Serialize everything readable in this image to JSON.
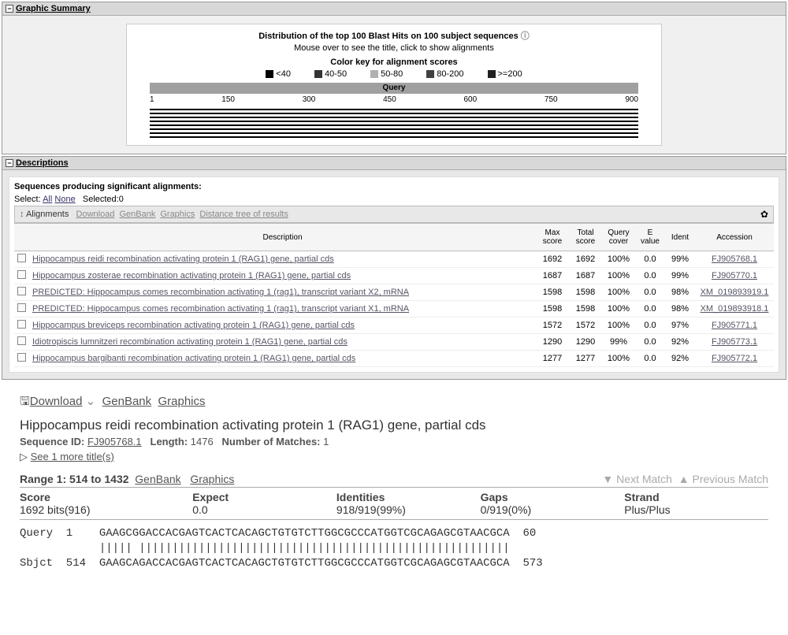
{
  "graphic_summary": {
    "header": "Graphic Summary",
    "dist_title": "Distribution of the top 100 Blast Hits on 100 subject sequences",
    "hover_hint": "Mouse over to see the title, click to show alignments",
    "color_key_title": "Color key for alignment scores",
    "color_key": [
      {
        "label": "<40",
        "color": "#000000"
      },
      {
        "label": "40-50",
        "color": "#333333"
      },
      {
        "label": "50-80",
        "color": "#b0b0b0"
      },
      {
        "label": "80-200",
        "color": "#404040"
      },
      {
        "label": ">=200",
        "color": "#202020"
      }
    ],
    "query_label": "Query",
    "ticks": [
      "1",
      "150",
      "300",
      "450",
      "600",
      "750",
      "900"
    ],
    "hit_count": 8,
    "hit_color": "#000000"
  },
  "descriptions": {
    "header": "Descriptions",
    "seq_title": "Sequences producing significant alignments:",
    "select_label": "Select:",
    "select_all": "All",
    "select_none": "None",
    "selected_label": "Selected:0",
    "toolbar": {
      "alignments": "Alignments",
      "links": [
        "Download",
        "GenBank",
        "Graphics",
        "Distance tree of results"
      ]
    },
    "columns": {
      "desc": "Description",
      "max": "Max score",
      "total": "Total score",
      "cover": "Query cover",
      "evalue": "E value",
      "ident": "Ident",
      "acc": "Accession"
    },
    "rows": [
      {
        "desc": "Hippocampus reidi recombination activating protein 1 (RAG1) gene, partial cds",
        "max": "1692",
        "total": "1692",
        "cover": "100%",
        "evalue": "0.0",
        "ident": "99%",
        "acc": "FJ905768.1"
      },
      {
        "desc": "Hippocampus zosterae recombination activating protein 1 (RAG1) gene, partial cds",
        "max": "1687",
        "total": "1687",
        "cover": "100%",
        "evalue": "0.0",
        "ident": "99%",
        "acc": "FJ905770.1"
      },
      {
        "desc": "PREDICTED: Hippocampus comes recombination activating 1 (rag1), transcript variant X2, mRNA",
        "max": "1598",
        "total": "1598",
        "cover": "100%",
        "evalue": "0.0",
        "ident": "98%",
        "acc": "XM_019893919.1"
      },
      {
        "desc": "PREDICTED: Hippocampus comes recombination activating 1 (rag1), transcript variant X1, mRNA",
        "max": "1598",
        "total": "1598",
        "cover": "100%",
        "evalue": "0.0",
        "ident": "98%",
        "acc": "XM_019893918.1"
      },
      {
        "desc": "Hippocampus breviceps recombination activating protein 1 (RAG1) gene, partial cds",
        "max": "1572",
        "total": "1572",
        "cover": "100%",
        "evalue": "0.0",
        "ident": "97%",
        "acc": "FJ905771.1"
      },
      {
        "desc": "Idiotropiscis lumnitzeri recombination activating protein 1 (RAG1) gene, partial cds",
        "max": "1290",
        "total": "1290",
        "cover": "99%",
        "evalue": "0.0",
        "ident": "92%",
        "acc": "FJ905773.1"
      },
      {
        "desc": "Hippocampus bargibanti recombination activating protein 1 (RAG1) gene, partial cds",
        "max": "1277",
        "total": "1277",
        "cover": "100%",
        "evalue": "0.0",
        "ident": "92%",
        "acc": "FJ905772.1"
      }
    ]
  },
  "alignment_detail": {
    "download": "Download",
    "genbank": "GenBank",
    "graphics": "Graphics",
    "title": "Hippocampus reidi recombination activating protein 1 (RAG1) gene, partial cds",
    "seq_id_label": "Sequence ID:",
    "seq_id": "FJ905768.1",
    "length_label": "Length:",
    "length": "1476",
    "matches_label": "Number of Matches:",
    "matches": "1",
    "more_titles": "See 1 more title(s)",
    "range_label": "Range 1: 514 to 1432",
    "range_genbank": "GenBank",
    "range_graphics": "Graphics",
    "next_match": "Next Match",
    "prev_match": "Previous Match",
    "stats": {
      "score_label": "Score",
      "score": "1692 bits(916)",
      "expect_label": "Expect",
      "expect": "0.0",
      "ident_label": "Identities",
      "ident": "918/919(99%)",
      "gaps_label": "Gaps",
      "gaps": "0/919(0%)",
      "strand_label": "Strand",
      "strand": "Plus/Plus"
    },
    "aln_lines": [
      "Query  1    GAAGCGGACCACGAGTCACTCACAGCTGTGTCTTGGCGCCCATGGTCGCAGAGCGTAACGCA  60",
      "            ||||| ||||||||||||||||||||||||||||||||||||||||||||||||||||||||",
      "Sbjct  514  GAAGCAGACCACGAGTCACTCACAGCTGTGTCTTGGCGCCCATGGTCGCAGAGCGTAACGCA  573"
    ]
  }
}
